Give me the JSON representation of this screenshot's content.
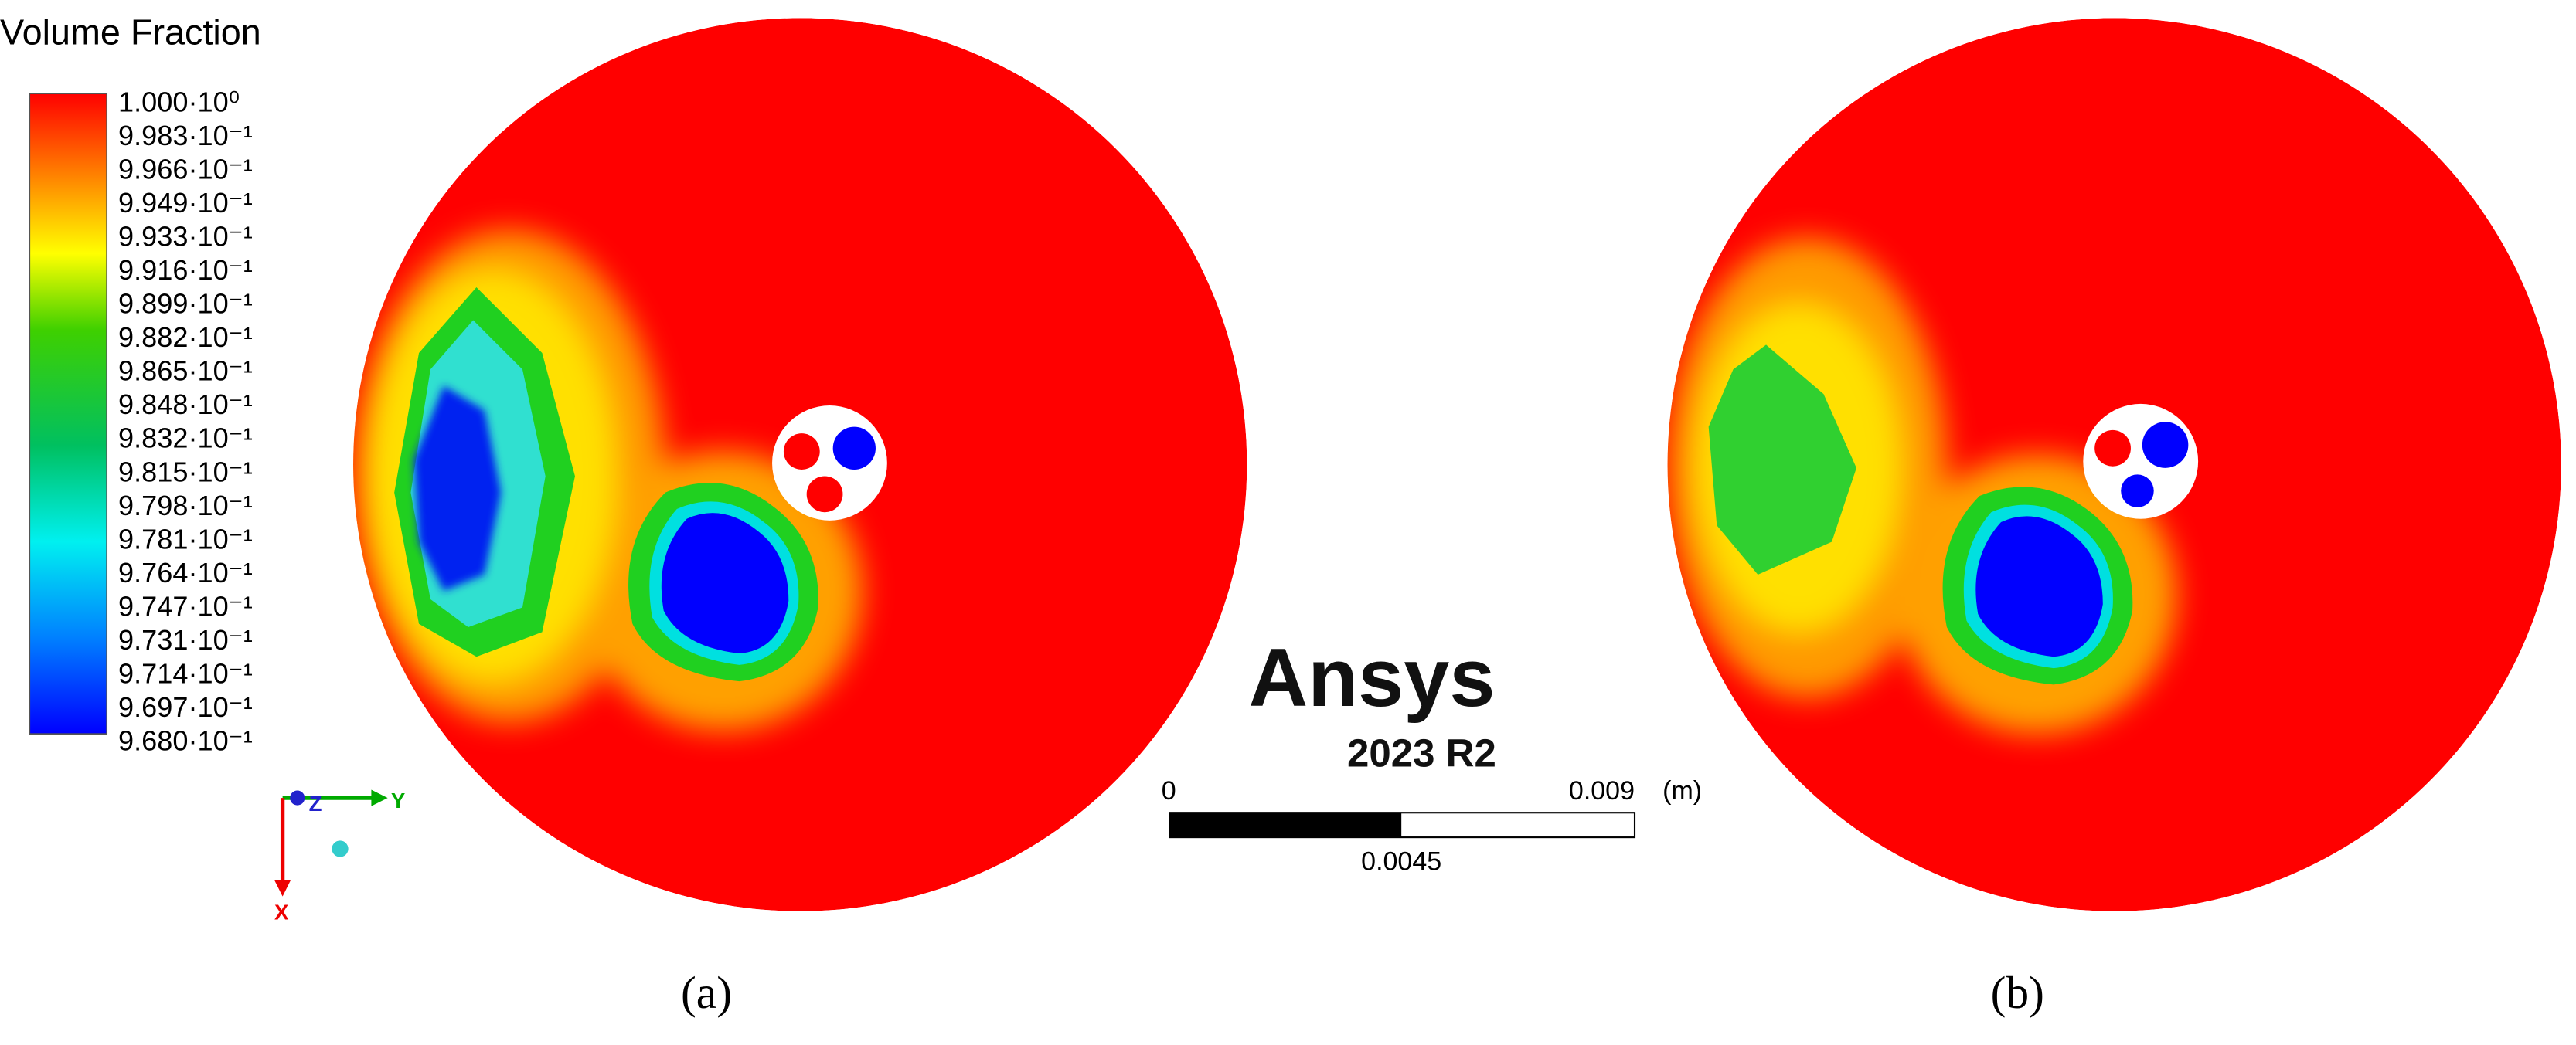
{
  "legend": {
    "title": "Volume Fraction",
    "labels": [
      "1.000·10⁰",
      "9.983·10⁻¹",
      "9.966·10⁻¹",
      "9.949·10⁻¹",
      "9.933·10⁻¹",
      "9.916·10⁻¹",
      "9.899·10⁻¹",
      "9.882·10⁻¹",
      "9.865·10⁻¹",
      "9.848·10⁻¹",
      "9.832·10⁻¹",
      "9.815·10⁻¹",
      "9.798·10⁻¹",
      "9.781·10⁻¹",
      "9.764·10⁻¹",
      "9.747·10⁻¹",
      "9.731·10⁻¹",
      "9.714·10⁻¹",
      "9.697·10⁻¹",
      "9.680·10⁻¹"
    ]
  },
  "logo": {
    "name": "Ansys",
    "version": "2023 R2"
  },
  "scale_bar": {
    "start": "0",
    "end": "0.009",
    "unit": "(m)",
    "middle": "0.0045"
  },
  "triad": {
    "y": "Y",
    "z": "Z",
    "x": "X"
  },
  "captions": [
    "(a)",
    "(b)"
  ]
}
